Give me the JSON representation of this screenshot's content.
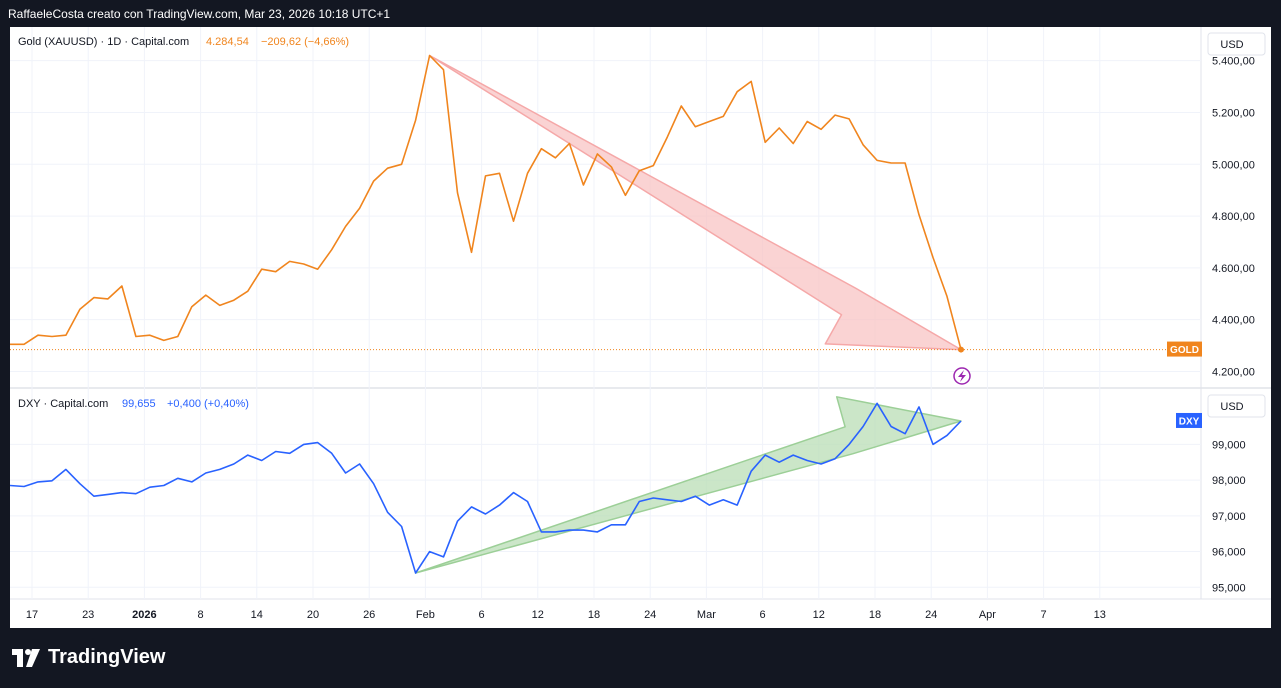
{
  "header": {
    "attribution": "RaffaeleCosta creato con TradingView.com, Mar 23, 2026 10:18 UTC+1"
  },
  "footer": {
    "logo_text": "TradingView"
  },
  "colors": {
    "gold": "#f0851e",
    "dxy": "#2962ff",
    "red_arrow": "#f8c4c4",
    "green_arrow": "#b9deb5",
    "background": "#131722"
  },
  "chart_data": [
    {
      "type": "line",
      "name": "gold-pane",
      "legend": {
        "symbol": "Gold (XAUUSD) · 1D · Capital.com",
        "value": "4.284,54",
        "change": "−209,62 (−4,66%)"
      },
      "currency": "USD",
      "price_tag": "GOLD",
      "ylim": [
        4140,
        5530
      ],
      "y_ticks": [
        "5.400,00",
        "5.200,00",
        "5.000,00",
        "4.800,00",
        "4.600,00",
        "4.400,00",
        "4.200,00"
      ],
      "y_tick_values": [
        5400,
        5200,
        5000,
        4800,
        4600,
        4400,
        4200
      ],
      "last_value": 4284.54,
      "series": [
        {
          "name": "Gold (XAUUSD)",
          "values": [
            4305,
            4305,
            4340,
            4335,
            4340,
            4440,
            4485,
            4480,
            4530,
            4335,
            4340,
            4320,
            4335,
            4450,
            4495,
            4455,
            4475,
            4510,
            4595,
            4585,
            4625,
            4615,
            4595,
            4670,
            4760,
            4830,
            4935,
            4985,
            5000,
            5170,
            5420,
            5365,
            4890,
            4660,
            4955,
            4965,
            4780,
            4965,
            5060,
            5025,
            5080,
            4920,
            5040,
            4990,
            4880,
            4975,
            4995,
            5105,
            5225,
            5145,
            5165,
            5185,
            5280,
            5320,
            5085,
            5140,
            5080,
            5165,
            5135,
            5190,
            5175,
            5075,
            5015,
            5005,
            5005,
            4805,
            4640,
            4490,
            4284.54
          ]
        }
      ],
      "annotation": {
        "type": "arrow",
        "direction": "down",
        "from_index": 30,
        "to_index": 68
      }
    },
    {
      "type": "line",
      "name": "dxy-pane",
      "legend": {
        "symbol": "DXY · Capital.com",
        "value": "99,655",
        "change": "+0,400 (+0,40%)"
      },
      "currency": "USD",
      "price_tag": "DXY",
      "ylim": [
        94.7,
        100.55
      ],
      "y_ticks": [
        "99,000",
        "98,000",
        "97,000",
        "96,000",
        "95,000"
      ],
      "y_tick_values": [
        99,
        98,
        97,
        96,
        95
      ],
      "last_value": 99.655,
      "series": [
        {
          "name": "DXY",
          "values": [
            97.85,
            97.82,
            97.95,
            97.98,
            98.3,
            97.9,
            97.55,
            97.6,
            97.65,
            97.62,
            97.8,
            97.85,
            98.05,
            97.95,
            98.2,
            98.3,
            98.45,
            98.7,
            98.55,
            98.8,
            98.75,
            99.0,
            99.05,
            98.75,
            98.2,
            98.45,
            97.9,
            97.1,
            96.7,
            95.4,
            96.0,
            95.85,
            96.85,
            97.25,
            97.05,
            97.3,
            97.65,
            97.4,
            96.55,
            96.55,
            96.6,
            96.6,
            96.55,
            96.75,
            96.75,
            97.4,
            97.5,
            97.45,
            97.4,
            97.55,
            97.3,
            97.45,
            97.3,
            98.25,
            98.7,
            98.5,
            98.7,
            98.55,
            98.45,
            98.6,
            99.0,
            99.5,
            100.15,
            99.5,
            99.3,
            100.05,
            99.0,
            99.25,
            99.655
          ]
        }
      ],
      "annotation": {
        "type": "arrow",
        "direction": "up",
        "from_index": 29,
        "to_index": 68
      }
    }
  ],
  "x_axis": {
    "labels": [
      "17",
      "23",
      "2026",
      "8",
      "14",
      "20",
      "26",
      "Feb",
      "6",
      "12",
      "18",
      "24",
      "Mar",
      "6",
      "12",
      "18",
      "24",
      "Apr",
      "7",
      "13"
    ]
  }
}
